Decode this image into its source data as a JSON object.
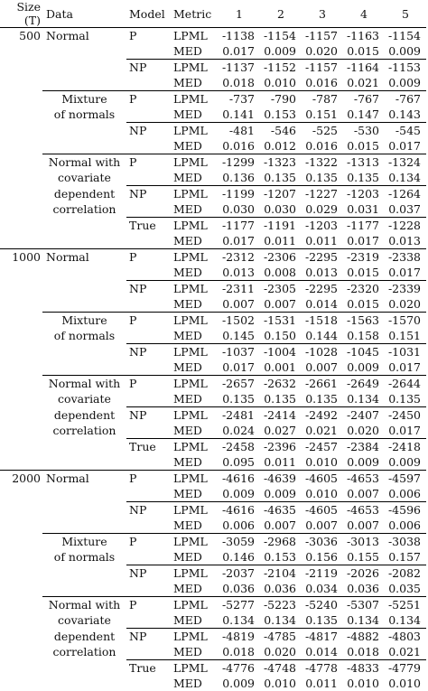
{
  "headers": [
    "Size (T)",
    "Data",
    "Model",
    "Metric",
    "1",
    "2",
    "3",
    "4",
    "5"
  ],
  "sections": [
    {
      "size": "500",
      "groups": [
        {
          "data": [
            "Normal"
          ],
          "rows": [
            {
              "model": "P",
              "metric": "LPML",
              "v": [
                "-1138",
                "-1154",
                "-1157",
                "-1163",
                "-1154"
              ]
            },
            {
              "model": "",
              "metric": "MED",
              "v": [
                "0.017",
                "0.009",
                "0.020",
                "0.015",
                "0.009"
              ]
            },
            {
              "model": "NP",
              "metric": "LPML",
              "v": [
                "-1137",
                "-1152",
                "-1157",
                "-1164",
                "-1153"
              ]
            },
            {
              "model": "",
              "metric": "MED",
              "v": [
                "0.018",
                "0.010",
                "0.016",
                "0.021",
                "0.009"
              ]
            }
          ]
        },
        {
          "data": [
            "Mixture",
            "of normals"
          ],
          "rows": [
            {
              "model": "P",
              "metric": "LPML",
              "v": [
                "-737",
                "-790",
                "-787",
                "-767",
                "-767"
              ]
            },
            {
              "model": "",
              "metric": "MED",
              "v": [
                "0.141",
                "0.153",
                "0.151",
                "0.147",
                "0.143"
              ]
            },
            {
              "model": "NP",
              "metric": "LPML",
              "v": [
                "-481",
                "-546",
                "-525",
                "-530",
                "-545"
              ]
            },
            {
              "model": "",
              "metric": "MED",
              "v": [
                "0.016",
                "0.012",
                "0.016",
                "0.015",
                "0.017"
              ]
            }
          ]
        },
        {
          "data": [
            "Normal with",
            "covariate",
            "dependent",
            "correlation"
          ],
          "rows": [
            {
              "model": "P",
              "metric": "LPML",
              "v": [
                "-1299",
                "-1323",
                "-1322",
                "-1313",
                "-1324"
              ]
            },
            {
              "model": "",
              "metric": "MED",
              "v": [
                "0.136",
                "0.135",
                "0.135",
                "0.135",
                "0.134"
              ]
            },
            {
              "model": "NP",
              "metric": "LPML",
              "v": [
                "-1199",
                "-1207",
                "-1227",
                "-1203",
                "-1264"
              ]
            },
            {
              "model": "",
              "metric": "MED",
              "v": [
                "0.030",
                "0.030",
                "0.029",
                "0.031",
                "0.037"
              ]
            },
            {
              "model": "True",
              "metric": "LPML",
              "v": [
                "-1177",
                "-1191",
                "-1203",
                "-1177",
                "-1228"
              ]
            },
            {
              "model": "",
              "metric": "MED",
              "v": [
                "0.017",
                "0.011",
                "0.011",
                "0.017",
                "0.013"
              ]
            }
          ]
        }
      ]
    },
    {
      "size": "1000",
      "groups": [
        {
          "data": [
            "Normal"
          ],
          "rows": [
            {
              "model": "P",
              "metric": "LPML",
              "v": [
                "-2312",
                "-2306",
                "-2295",
                "-2319",
                "-2338"
              ]
            },
            {
              "model": "",
              "metric": "MED",
              "v": [
                "0.013",
                "0.008",
                "0.013",
                "0.015",
                "0.017"
              ]
            },
            {
              "model": "NP",
              "metric": "LPML",
              "v": [
                "-2311",
                "-2305",
                "-2295",
                "-2320",
                "-2339"
              ]
            },
            {
              "model": "",
              "metric": "MED",
              "v": [
                "0.007",
                "0.007",
                "0.014",
                "0.015",
                "0.020"
              ]
            }
          ]
        },
        {
          "data": [
            "Mixture",
            "of normals"
          ],
          "rows": [
            {
              "model": "P",
              "metric": "LPML",
              "v": [
                "-1502",
                "-1531",
                "-1518",
                "-1563",
                "-1570"
              ]
            },
            {
              "model": "",
              "metric": "MED",
              "v": [
                "0.145",
                "0.150",
                "0.144",
                "0.158",
                "0.151"
              ]
            },
            {
              "model": "NP",
              "metric": "LPML",
              "v": [
                "-1037",
                "-1004",
                "-1028",
                "-1045",
                "-1031"
              ]
            },
            {
              "model": "",
              "metric": "MED",
              "v": [
                "0.017",
                "0.001",
                "0.007",
                "0.009",
                "0.017"
              ]
            }
          ]
        },
        {
          "data": [
            "Normal with",
            "covariate",
            "dependent",
            "correlation"
          ],
          "rows": [
            {
              "model": "P",
              "metric": "LPML",
              "v": [
                "-2657",
                "-2632",
                "-2661",
                "-2649",
                "-2644"
              ]
            },
            {
              "model": "",
              "metric": "MED",
              "v": [
                "0.135",
                "0.135",
                "0.135",
                "0.134",
                "0.135"
              ]
            },
            {
              "model": "NP",
              "metric": "LPML",
              "v": [
                "-2481",
                "-2414",
                "-2492",
                "-2407",
                "-2450"
              ]
            },
            {
              "model": "",
              "metric": "MED",
              "v": [
                "0.024",
                "0.027",
                "0.021",
                "0.020",
                "0.017"
              ]
            },
            {
              "model": "True",
              "metric": "LPML",
              "v": [
                "-2458",
                "-2396",
                "-2457",
                "-2384",
                "-2418"
              ]
            },
            {
              "model": "",
              "metric": "MED",
              "v": [
                "0.095",
                "0.011",
                "0.010",
                "0.009",
                "0.009"
              ]
            }
          ]
        }
      ]
    },
    {
      "size": "2000",
      "groups": [
        {
          "data": [
            "Normal"
          ],
          "rows": [
            {
              "model": "P",
              "metric": "LPML",
              "v": [
                "-4616",
                "-4639",
                "-4605",
                "-4653",
                "-4597"
              ]
            },
            {
              "model": "",
              "metric": "MED",
              "v": [
                "0.009",
                "0.009",
                "0.010",
                "0.007",
                "0.006"
              ]
            },
            {
              "model": "NP",
              "metric": "LPML",
              "v": [
                "-4616",
                "-4635",
                "-4605",
                "-4653",
                "-4596"
              ]
            },
            {
              "model": "",
              "metric": "MED",
              "v": [
                "0.006",
                "0.007",
                "0.007",
                "0.007",
                "0.006"
              ]
            }
          ]
        },
        {
          "data": [
            "Mixture",
            "of normals"
          ],
          "rows": [
            {
              "model": "P",
              "metric": "LPML",
              "v": [
                "-3059",
                "-2968",
                "-3036",
                "-3013",
                "-3038"
              ]
            },
            {
              "model": "",
              "metric": "MED",
              "v": [
                "0.146",
                "0.153",
                "0.156",
                "0.155",
                "0.157"
              ]
            },
            {
              "model": "NP",
              "metric": "LPML",
              "v": [
                "-2037",
                "-2104",
                "-2119",
                "-2026",
                "-2082"
              ]
            },
            {
              "model": "",
              "metric": "MED",
              "v": [
                "0.036",
                "0.036",
                "0.034",
                "0.036",
                "0.035"
              ]
            }
          ]
        },
        {
          "data": [
            "Normal with",
            "covariate",
            "dependent",
            "correlation"
          ],
          "rows": [
            {
              "model": "P",
              "metric": "LPML",
              "v": [
                "-5277",
                "-5223",
                "-5240",
                "-5307",
                "-5251"
              ]
            },
            {
              "model": "",
              "metric": "MED",
              "v": [
                "0.134",
                "0.134",
                "0.135",
                "0.134",
                "0.134"
              ]
            },
            {
              "model": "NP",
              "metric": "LPML",
              "v": [
                "-4819",
                "-4785",
                "-4817",
                "-4882",
                "-4803"
              ]
            },
            {
              "model": "",
              "metric": "MED",
              "v": [
                "0.018",
                "0.020",
                "0.014",
                "0.018",
                "0.021"
              ]
            },
            {
              "model": "True",
              "metric": "LPML",
              "v": [
                "-4776",
                "-4748",
                "-4778",
                "-4833",
                "-4779"
              ]
            },
            {
              "model": "",
              "metric": "MED",
              "v": [
                "0.009",
                "0.010",
                "0.011",
                "0.010",
                "0.010"
              ]
            }
          ]
        }
      ]
    }
  ]
}
